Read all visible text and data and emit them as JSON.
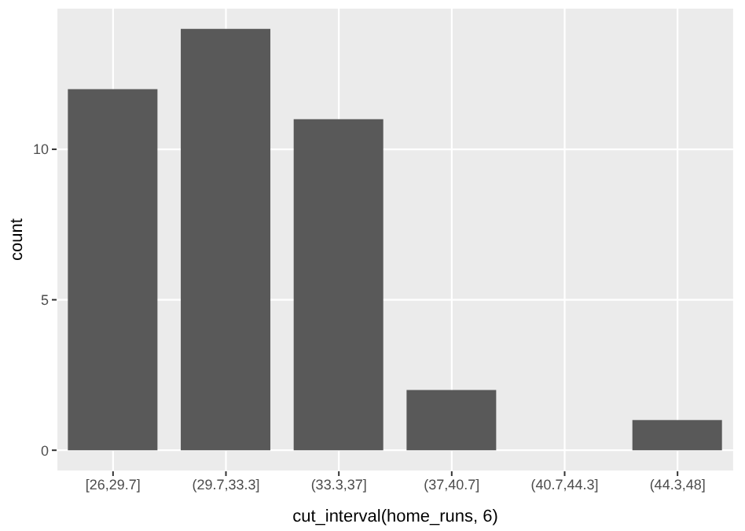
{
  "chart_data": {
    "type": "bar",
    "xlabel": "cut_interval(home_runs, 6)",
    "ylabel": "count",
    "categories": [
      "[26,29.7]",
      "(29.7,33.3]",
      "(33.3,37]",
      "(37,40.7]",
      "(40.7,44.3]",
      "(44.3,48]"
    ],
    "values": [
      12,
      14,
      11,
      2,
      0,
      1
    ],
    "color": "#595959",
    "ylim": [
      -0.7,
      14.7
    ],
    "yticks": [
      0,
      5,
      10
    ],
    "grid": true
  }
}
